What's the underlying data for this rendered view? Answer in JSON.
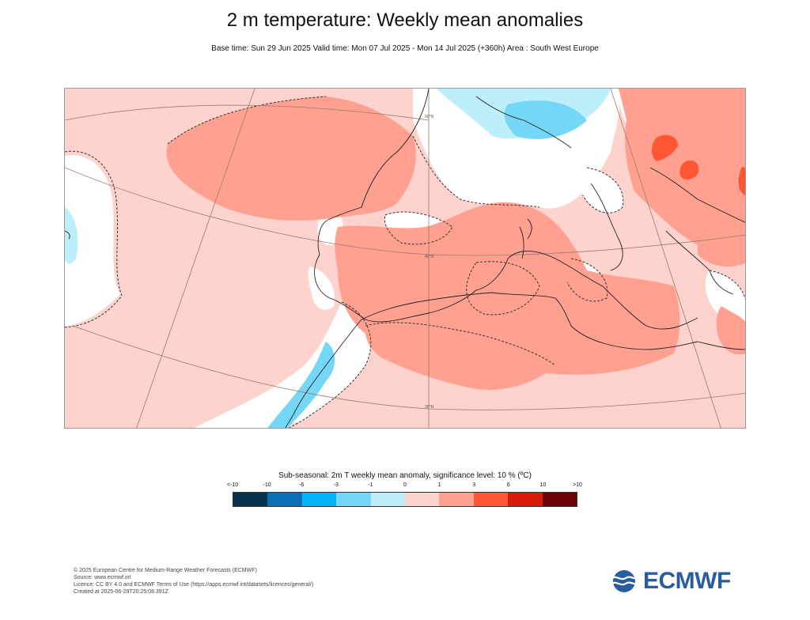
{
  "title": "2 m temperature: Weekly mean anomalies",
  "subtitle": "Base time: Sun 29 Jun 2025 Valid time: Mon 07 Jul 2025 - Mon 14 Jul 2025 (+360h) Area : South West Europe",
  "map_labels": {
    "lat_top": "50°N",
    "lat_mid": "40°N",
    "lat_bottom": "30°N"
  },
  "legend": {
    "title": "Sub-seasonal: 2m T weekly mean anomaly, significance level: 10 % (ºC)",
    "ticks": [
      "<-10",
      "-10",
      "-6",
      "-3",
      "-1",
      "0",
      "1",
      "3",
      "6",
      "10",
      ">10"
    ],
    "colors": [
      "#08304f",
      "#0a6fb5",
      "#00b4f5",
      "#74d7f8",
      "#bdeefb",
      "#ffd3cd",
      "#ffa090",
      "#ff5733",
      "#d81808",
      "#6a0303"
    ]
  },
  "footer": {
    "copyright": "© 2025 European Centre for Medium-Range Weather Forecasts (ECMWF)",
    "source": "Source: www.ecmwf.int",
    "licence": "Licence: CC BY 4.0 and ECMWF Terms of Use (https://apps.ecmwf.int/datasets/licences/general/)",
    "created": "Created at 2025-06-29T20:25:08.391Z"
  },
  "logo": {
    "text": "ECMWF",
    "color": "#2a5d9f"
  }
}
